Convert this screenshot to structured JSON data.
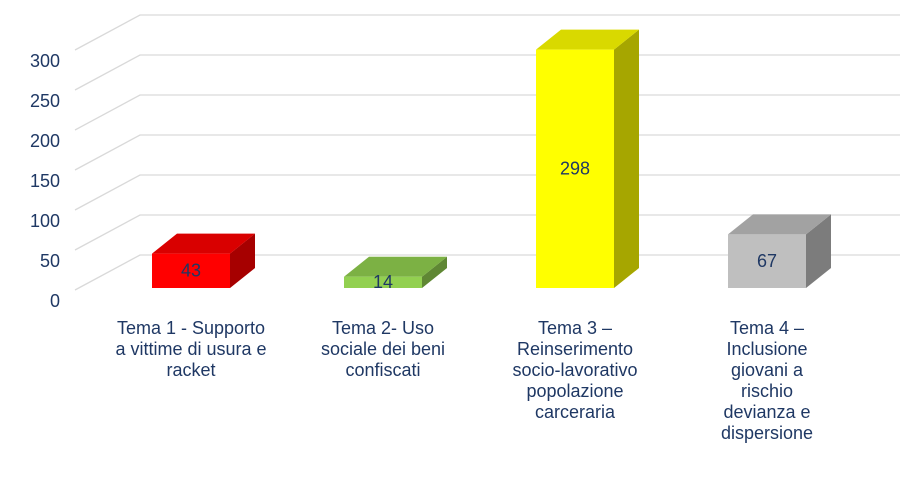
{
  "chart_data": {
    "type": "bar3d",
    "categories": [
      "Tema 1 - Supporto a vittime di usura e racket",
      "Tema 2-  Uso sociale dei beni confiscati",
      "Tema 3 – Reinserimento socio-lavorativo popolazione carceraria",
      "Tema 4 – Inclusione giovani a rischio devianza e dispersione"
    ],
    "values": [
      43,
      14,
      298,
      67
    ],
    "colors": [
      "#ff0000",
      "#92d050",
      "#ffff00",
      "#bfbfbf"
    ],
    "ylim": [
      0,
      300
    ],
    "yticks": [
      0,
      50,
      100,
      150,
      200,
      250,
      300
    ],
    "grid": true
  }
}
